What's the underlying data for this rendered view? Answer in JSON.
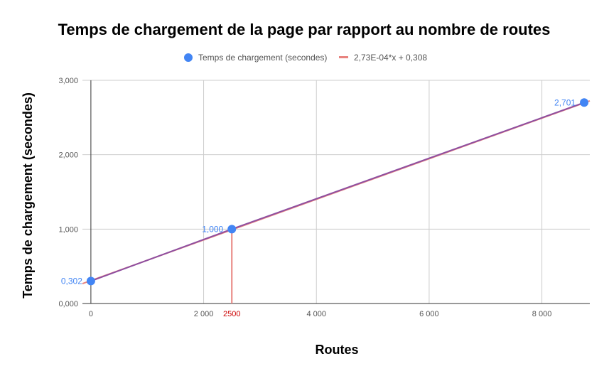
{
  "chart_data": {
    "type": "scatter",
    "title": "Temps de chargement de la page par rapport au nombre de routes",
    "xlabel": "Routes",
    "ylabel": "Temps de chargement (secondes)",
    "xlim": [
      -150,
      8850
    ],
    "ylim": [
      0,
      3
    ],
    "x_ticks": [
      {
        "value": 0,
        "label": "0"
      },
      {
        "value": 2000,
        "label": "2 000"
      },
      {
        "value": 4000,
        "label": "4 000"
      },
      {
        "value": 6000,
        "label": "6 000"
      },
      {
        "value": 8000,
        "label": "8 000"
      }
    ],
    "y_ticks": [
      {
        "value": 0,
        "label": "0,000"
      },
      {
        "value": 1,
        "label": "1,000"
      },
      {
        "value": 2,
        "label": "2,000"
      },
      {
        "value": 3,
        "label": "3,000"
      }
    ],
    "series": [
      {
        "name": "Temps de chargement (secondes)",
        "color": "#4285f4",
        "points": [
          {
            "x": 0,
            "y": 0.302,
            "label": "0,302"
          },
          {
            "x": 2500,
            "y": 1.0,
            "label": "1,000"
          },
          {
            "x": 8750,
            "y": 2.701,
            "label": "2,701"
          }
        ]
      }
    ],
    "trendline": {
      "name": "2,73E-04*x + 0,308",
      "color": "#e8837f",
      "slope": 0.000273,
      "intercept": 0.308
    },
    "fit_line_color": "#8e4fa0",
    "marker": {
      "x": 2500,
      "label": "2500",
      "color": "#e8837f",
      "label_color": "#cc0000"
    },
    "legend_position": "top",
    "grid": true
  }
}
